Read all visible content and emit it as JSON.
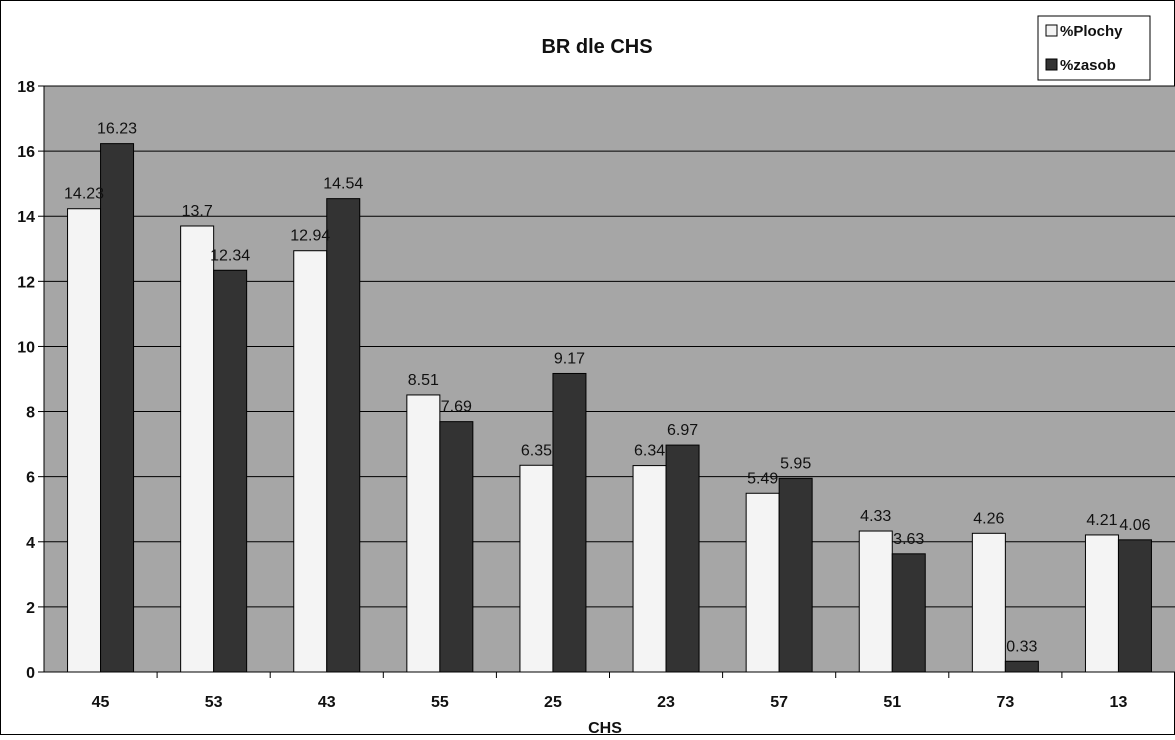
{
  "chart_data": {
    "type": "bar",
    "title": "BR dle CHS",
    "xlabel": "CHS",
    "ylabel": "",
    "categories": [
      "45",
      "53",
      "43",
      "55",
      "25",
      "23",
      "57",
      "51",
      "73",
      "13"
    ],
    "series": [
      {
        "name": "%Plochy",
        "color": "#f4f4f4",
        "values": [
          14.23,
          13.7,
          12.94,
          8.51,
          6.35,
          6.34,
          5.49,
          4.33,
          4.26,
          4.21
        ]
      },
      {
        "name": "%zasob",
        "color": "#333333",
        "values": [
          16.23,
          12.34,
          14.54,
          7.69,
          9.17,
          6.97,
          5.95,
          3.63,
          0.33,
          4.06
        ]
      }
    ],
    "data_labels": [
      [
        "14.23",
        "13.7",
        "12.94",
        "8.51",
        "6.35",
        "6.34",
        "5.49",
        "4.33",
        "4.26",
        "4.21"
      ],
      [
        "16.23",
        "12.34",
        "14.54",
        "7.69",
        "9.17",
        "6.97",
        "5.95",
        "3.63",
        "0.33",
        "4.06"
      ]
    ],
    "ylim": [
      0,
      18
    ],
    "yticks": [
      0,
      2,
      4,
      6,
      8,
      10,
      12,
      14,
      16,
      18
    ],
    "grid": true,
    "legend_position": "top-right",
    "plot_background": "#a6a6a6"
  }
}
